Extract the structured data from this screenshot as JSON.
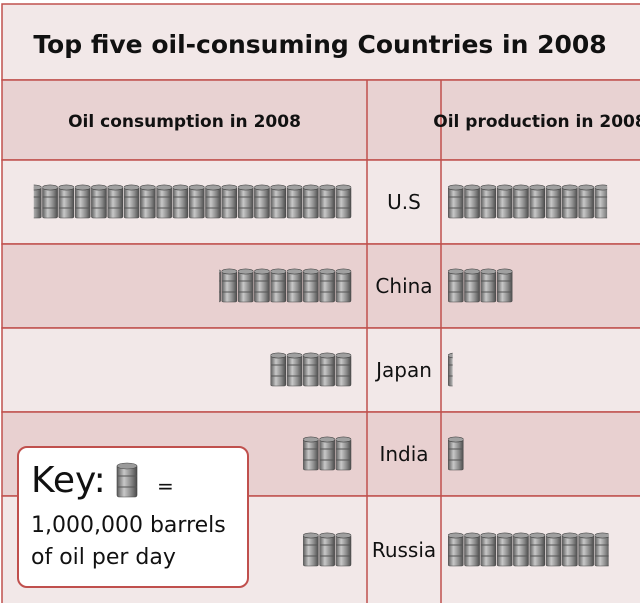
{
  "chart_data": {
    "type": "table",
    "title": "Top five oil-consuming Countries in 2008",
    "columns": [
      "Oil consumption in 2008",
      "",
      "Oil production in 2008"
    ],
    "rows": [
      {
        "country": "U.S",
        "consumption": 19.5,
        "production": 9.8
      },
      {
        "country": "China",
        "consumption": 8.1,
        "production": 4.0
      },
      {
        "country": "Japan",
        "consumption": 5.0,
        "production": 0.3
      },
      {
        "country": "India",
        "consumption": 3.0,
        "production": 1.0
      },
      {
        "country": "Russia",
        "consumption": 3.0,
        "production": 9.9
      }
    ],
    "colors": {
      "border": "#c0504d",
      "header_fill": "#e8d2d2",
      "row_light": "#f2e8e8",
      "row_dark": "#e8d0d0",
      "barrel": "#7f7f7f"
    }
  },
  "key": {
    "title": "Key:",
    "equals": "=",
    "text": "1,000,000 barrels of oil per day"
  }
}
